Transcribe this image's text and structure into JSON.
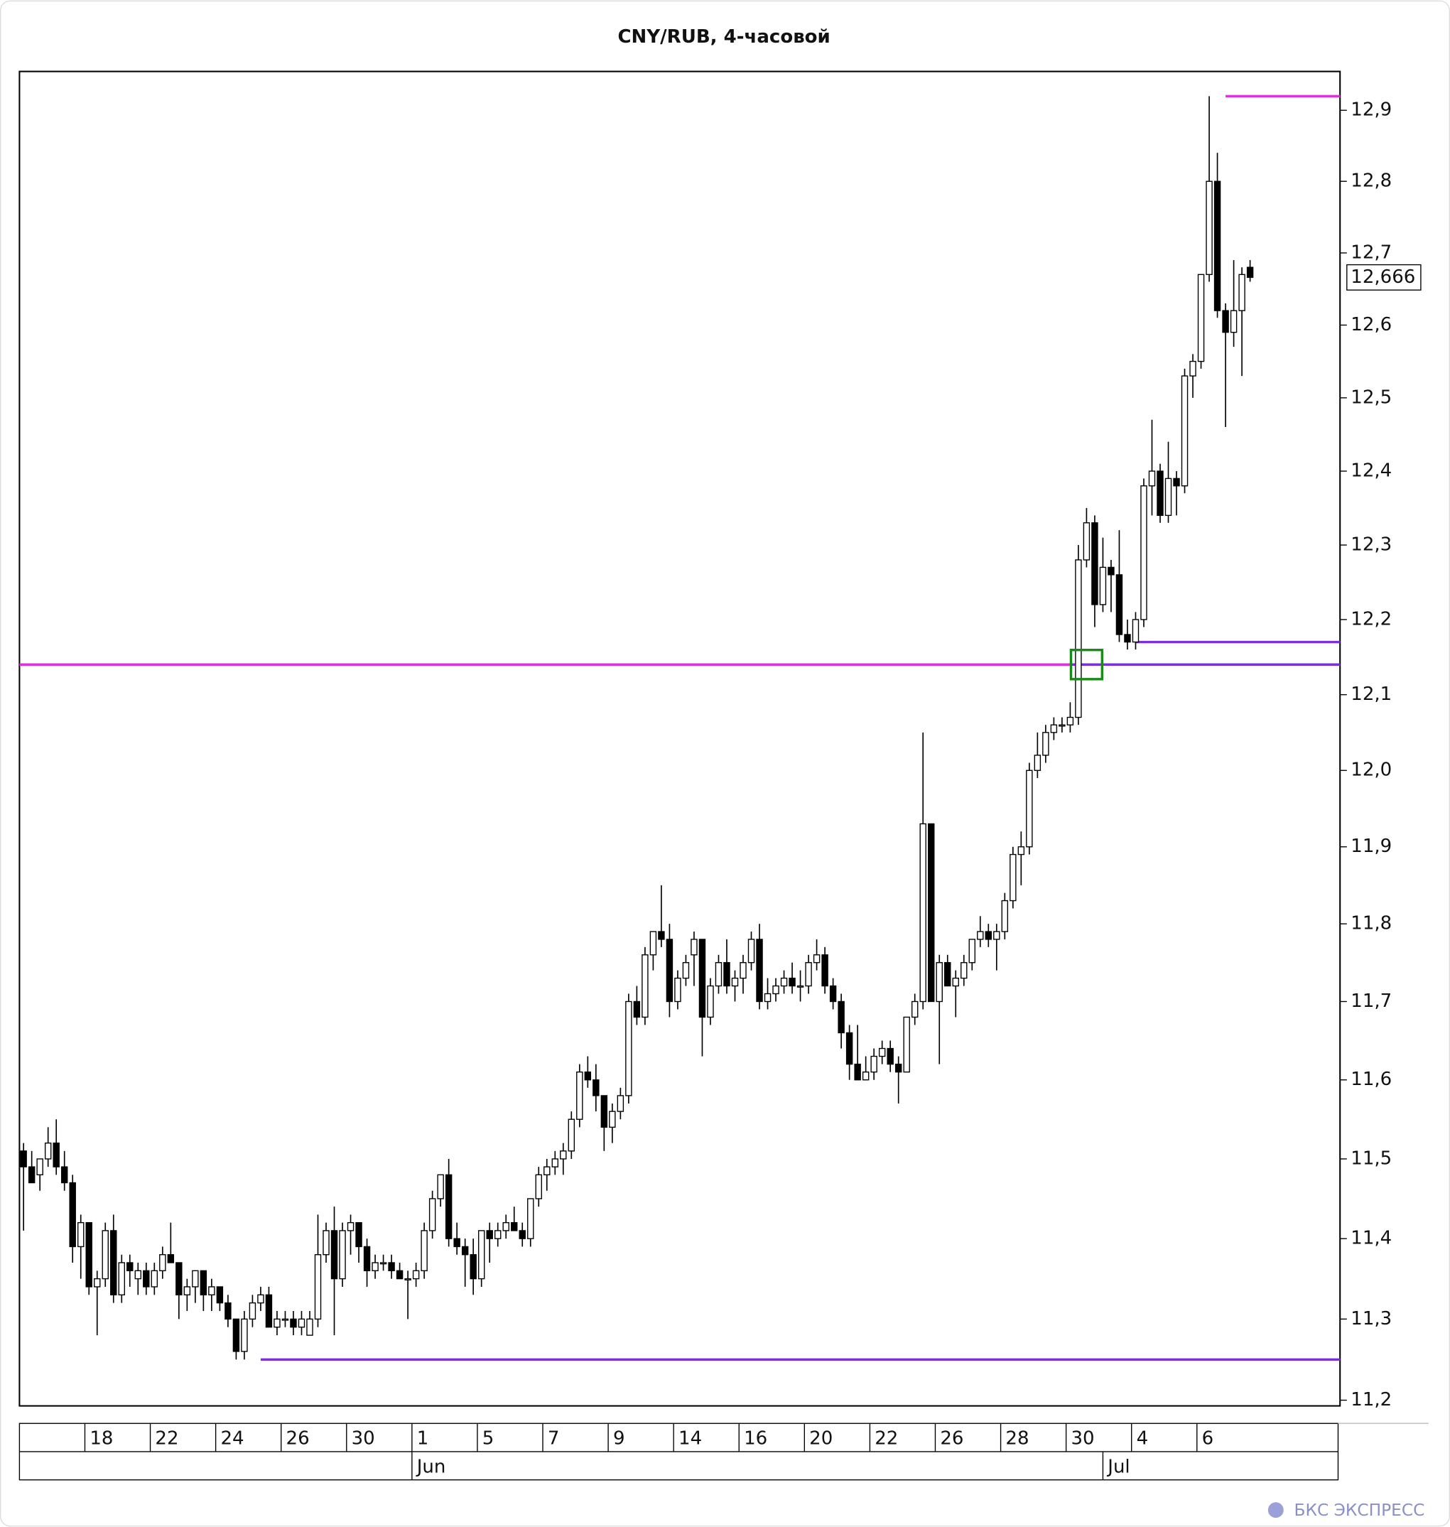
{
  "chart_data": {
    "type": "candlestick",
    "title": "CNY/RUB, 4-часовой",
    "log_scale": true,
    "up_color": "#ffffff",
    "down_color": "#000000",
    "ylim": [
      11.193,
      12.955
    ],
    "xlim": [
      -0.5,
      161
    ],
    "yticks": [
      {
        "value": 11.2,
        "label": "11,2"
      },
      {
        "value": 11.3,
        "label": "11,3"
      },
      {
        "value": 11.4,
        "label": "11,4"
      },
      {
        "value": 11.5,
        "label": "11,5"
      },
      {
        "value": 11.6,
        "label": "11,6"
      },
      {
        "value": 11.7,
        "label": "11,7"
      },
      {
        "value": 11.8,
        "label": "11,8"
      },
      {
        "value": 11.9,
        "label": "11,9"
      },
      {
        "value": 12.0,
        "label": "12,0"
      },
      {
        "value": 12.1,
        "label": "12,1"
      },
      {
        "value": 12.2,
        "label": "12,2"
      },
      {
        "value": 12.3,
        "label": "12,3"
      },
      {
        "value": 12.4,
        "label": "12,4"
      },
      {
        "value": 12.5,
        "label": "12,5"
      },
      {
        "value": 12.6,
        "label": "12,6"
      },
      {
        "value": 12.7,
        "label": "12,7"
      },
      {
        "value": 12.8,
        "label": "12,8"
      },
      {
        "value": 12.9,
        "label": "12,9"
      }
    ],
    "xticks": [
      {
        "value": 7.5,
        "label": "18"
      },
      {
        "value": 15.5,
        "label": "22"
      },
      {
        "value": 23.5,
        "label": "24"
      },
      {
        "value": 31.5,
        "label": "26"
      },
      {
        "value": 39.5,
        "label": "30"
      },
      {
        "value": 47.5,
        "label": "1"
      },
      {
        "value": 55.5,
        "label": "5"
      },
      {
        "value": 63.5,
        "label": "7"
      },
      {
        "value": 71.5,
        "label": "9"
      },
      {
        "value": 79.5,
        "label": "14"
      },
      {
        "value": 87.5,
        "label": "16"
      },
      {
        "value": 95.5,
        "label": "20"
      },
      {
        "value": 103.5,
        "label": "22"
      },
      {
        "value": 111.5,
        "label": "26"
      },
      {
        "value": 119.5,
        "label": "28"
      },
      {
        "value": 127.5,
        "label": "30"
      },
      {
        "value": 135.5,
        "label": "4"
      },
      {
        "value": 143.5,
        "label": "6"
      }
    ],
    "month_ticks": [
      {
        "value": 47.5,
        "label": "Jun"
      },
      {
        "value": 132,
        "label": "Jul"
      }
    ],
    "open": [
      11.51,
      11.49,
      11.48,
      11.5,
      11.52,
      11.49,
      11.47,
      11.39,
      11.42,
      11.34,
      11.35,
      11.41,
      11.33,
      11.37,
      11.35,
      11.36,
      11.34,
      11.36,
      11.38,
      11.37,
      11.33,
      11.34,
      11.36,
      11.33,
      11.34,
      11.32,
      11.3,
      11.26,
      11.3,
      11.32,
      11.33,
      11.29,
      11.3,
      11.3,
      11.29,
      11.28,
      11.3,
      11.38,
      11.41,
      11.35,
      11.41,
      11.42,
      11.39,
      11.36,
      11.37,
      11.37,
      11.36,
      11.35,
      11.35,
      11.36,
      11.41,
      11.45,
      11.48,
      11.4,
      11.39,
      11.38,
      11.35,
      11.41,
      11.4,
      11.41,
      11.42,
      11.41,
      11.4,
      11.45,
      11.48,
      11.49,
      11.5,
      11.51,
      11.55,
      11.61,
      11.6,
      11.58,
      11.54,
      11.56,
      11.58,
      11.7,
      11.68,
      11.76,
      11.79,
      11.78,
      11.7,
      11.73,
      11.76,
      11.78,
      11.68,
      11.72,
      11.75,
      11.72,
      11.73,
      11.75,
      11.78,
      11.7,
      11.71,
      11.72,
      11.73,
      11.72,
      11.72,
      11.75,
      11.76,
      11.72,
      11.7,
      11.66,
      11.62,
      11.6,
      11.61,
      11.63,
      11.64,
      11.62,
      11.61,
      11.68,
      11.7,
      11.93,
      11.7,
      11.75,
      11.72,
      11.73,
      11.75,
      11.78,
      11.79,
      11.78,
      11.79,
      11.83,
      11.89,
      11.9,
      12.0,
      12.02,
      12.05,
      12.06,
      12.06,
      12.07,
      12.28,
      12.33,
      12.22,
      12.27,
      12.26,
      12.18,
      12.17,
      12.2,
      12.38,
      12.4,
      12.34,
      12.39,
      12.38,
      12.53,
      12.55,
      12.67,
      12.8,
      12.62,
      12.59,
      12.62,
      12.68
    ],
    "high": [
      11.52,
      11.51,
      11.5,
      11.54,
      11.55,
      11.51,
      11.48,
      11.43,
      11.42,
      11.36,
      11.42,
      11.43,
      11.38,
      11.38,
      11.37,
      11.37,
      11.37,
      11.39,
      11.42,
      11.37,
      11.35,
      11.36,
      11.36,
      11.35,
      11.34,
      11.33,
      11.3,
      11.31,
      11.33,
      11.34,
      11.34,
      11.31,
      11.31,
      11.31,
      11.31,
      11.31,
      11.43,
      11.42,
      11.44,
      11.42,
      11.43,
      11.42,
      11.4,
      11.38,
      11.38,
      11.38,
      11.37,
      11.36,
      11.37,
      11.42,
      11.46,
      11.48,
      11.5,
      11.42,
      11.4,
      11.4,
      11.41,
      11.42,
      11.42,
      11.43,
      11.44,
      11.42,
      11.45,
      11.49,
      11.5,
      11.51,
      11.52,
      11.56,
      11.62,
      11.63,
      11.62,
      11.58,
      11.57,
      11.59,
      11.71,
      11.72,
      11.77,
      11.79,
      11.85,
      11.8,
      11.74,
      11.76,
      11.79,
      11.78,
      11.73,
      11.76,
      11.78,
      11.74,
      11.76,
      11.79,
      11.8,
      11.73,
      11.73,
      11.74,
      11.75,
      11.74,
      11.76,
      11.78,
      11.77,
      11.73,
      11.71,
      11.67,
      11.67,
      11.63,
      11.64,
      11.65,
      11.65,
      11.63,
      11.68,
      11.71,
      12.05,
      11.93,
      11.76,
      11.76,
      11.74,
      11.76,
      11.78,
      11.81,
      11.8,
      11.8,
      11.84,
      11.9,
      11.92,
      12.01,
      12.05,
      12.06,
      12.07,
      12.07,
      12.09,
      12.3,
      12.35,
      12.34,
      12.31,
      12.28,
      12.32,
      12.2,
      12.21,
      12.39,
      12.47,
      12.41,
      12.44,
      12.4,
      12.54,
      12.56,
      12.67,
      12.92,
      12.84,
      12.63,
      12.69,
      12.68,
      12.69
    ],
    "low": [
      11.41,
      11.47,
      11.46,
      11.49,
      11.48,
      11.46,
      11.37,
      11.35,
      11.33,
      11.28,
      11.34,
      11.32,
      11.32,
      11.34,
      11.33,
      11.33,
      11.33,
      11.35,
      11.37,
      11.3,
      11.31,
      11.32,
      11.31,
      11.31,
      11.31,
      11.29,
      11.25,
      11.25,
      11.29,
      11.31,
      11.29,
      11.28,
      11.29,
      11.28,
      11.28,
      11.28,
      11.29,
      11.37,
      11.28,
      11.34,
      11.38,
      11.37,
      11.34,
      11.35,
      11.36,
      11.35,
      11.35,
      11.3,
      11.34,
      11.35,
      11.4,
      11.44,
      11.39,
      11.38,
      11.34,
      11.33,
      11.34,
      11.37,
      11.39,
      11.4,
      11.41,
      11.39,
      11.39,
      11.44,
      11.46,
      11.48,
      11.48,
      11.5,
      11.54,
      11.59,
      11.56,
      11.51,
      11.52,
      11.55,
      11.57,
      11.67,
      11.67,
      11.74,
      11.77,
      11.68,
      11.69,
      11.72,
      11.72,
      11.63,
      11.67,
      11.71,
      11.71,
      11.7,
      11.71,
      11.74,
      11.69,
      11.69,
      11.7,
      11.71,
      11.71,
      11.7,
      11.71,
      11.74,
      11.71,
      11.69,
      11.64,
      11.6,
      11.6,
      11.6,
      11.6,
      11.62,
      11.61,
      11.57,
      11.61,
      11.67,
      11.69,
      11.7,
      11.62,
      11.72,
      11.68,
      11.72,
      11.74,
      11.77,
      11.77,
      11.74,
      11.78,
      11.82,
      11.85,
      11.89,
      11.99,
      12.01,
      12.04,
      12.05,
      12.05,
      12.06,
      12.27,
      12.19,
      12.21,
      12.21,
      12.17,
      12.16,
      12.16,
      12.19,
      12.34,
      12.33,
      12.33,
      12.34,
      12.37,
      12.5,
      12.54,
      12.66,
      12.61,
      12.46,
      12.57,
      12.53,
      12.66
    ],
    "close": [
      11.49,
      11.47,
      11.5,
      11.52,
      11.49,
      11.47,
      11.39,
      11.42,
      11.34,
      11.35,
      11.41,
      11.33,
      11.37,
      11.36,
      11.36,
      11.34,
      11.36,
      11.38,
      11.37,
      11.33,
      11.34,
      11.36,
      11.33,
      11.34,
      11.32,
      11.3,
      11.26,
      11.3,
      11.32,
      11.33,
      11.29,
      11.3,
      11.3,
      11.29,
      11.3,
      11.3,
      11.38,
      11.41,
      11.35,
      11.41,
      11.42,
      11.39,
      11.36,
      11.37,
      11.37,
      11.36,
      11.35,
      11.35,
      11.36,
      11.41,
      11.45,
      11.48,
      11.4,
      11.39,
      11.38,
      11.35,
      11.41,
      11.4,
      11.41,
      11.42,
      11.41,
      11.4,
      11.45,
      11.48,
      11.49,
      11.5,
      11.51,
      11.55,
      11.61,
      11.6,
      11.58,
      11.54,
      11.56,
      11.58,
      11.7,
      11.68,
      11.76,
      11.79,
      11.78,
      11.7,
      11.73,
      11.75,
      11.78,
      11.68,
      11.72,
      11.75,
      11.72,
      11.73,
      11.75,
      11.78,
      11.7,
      11.71,
      11.72,
      11.73,
      11.72,
      11.72,
      11.75,
      11.76,
      11.72,
      11.7,
      11.66,
      11.62,
      11.6,
      11.61,
      11.63,
      11.64,
      11.62,
      11.61,
      11.68,
      11.7,
      11.93,
      11.7,
      11.75,
      11.72,
      11.73,
      11.75,
      11.78,
      11.79,
      11.78,
      11.79,
      11.83,
      11.89,
      11.9,
      12.0,
      12.02,
      12.05,
      12.06,
      12.06,
      12.07,
      12.28,
      12.33,
      12.22,
      12.27,
      12.26,
      12.18,
      12.17,
      12.2,
      12.38,
      12.4,
      12.34,
      12.39,
      12.38,
      12.53,
      12.55,
      12.67,
      12.8,
      12.62,
      12.59,
      12.62,
      12.67,
      12.666
    ],
    "levels": [
      {
        "value": 12.92,
        "start": 147,
        "color": "#e030e0"
      },
      {
        "value": 12.17,
        "start": 136,
        "color": "#7a30e0"
      },
      {
        "value": 12.14,
        "start": -0.5,
        "end": 128,
        "color": "#e030e0"
      },
      {
        "value": 12.14,
        "start": 128,
        "color": "#7a30e0"
      },
      {
        "value": 11.25,
        "start": 29,
        "color": "#7a30e0"
      }
    ],
    "marker": {
      "x": 130,
      "y": 12.14,
      "color": "#1a8a1a"
    },
    "last_price": {
      "value": 12.666,
      "label": "12,666"
    }
  },
  "footer": {
    "brand": "БКС ЭКСПРЕСС"
  }
}
